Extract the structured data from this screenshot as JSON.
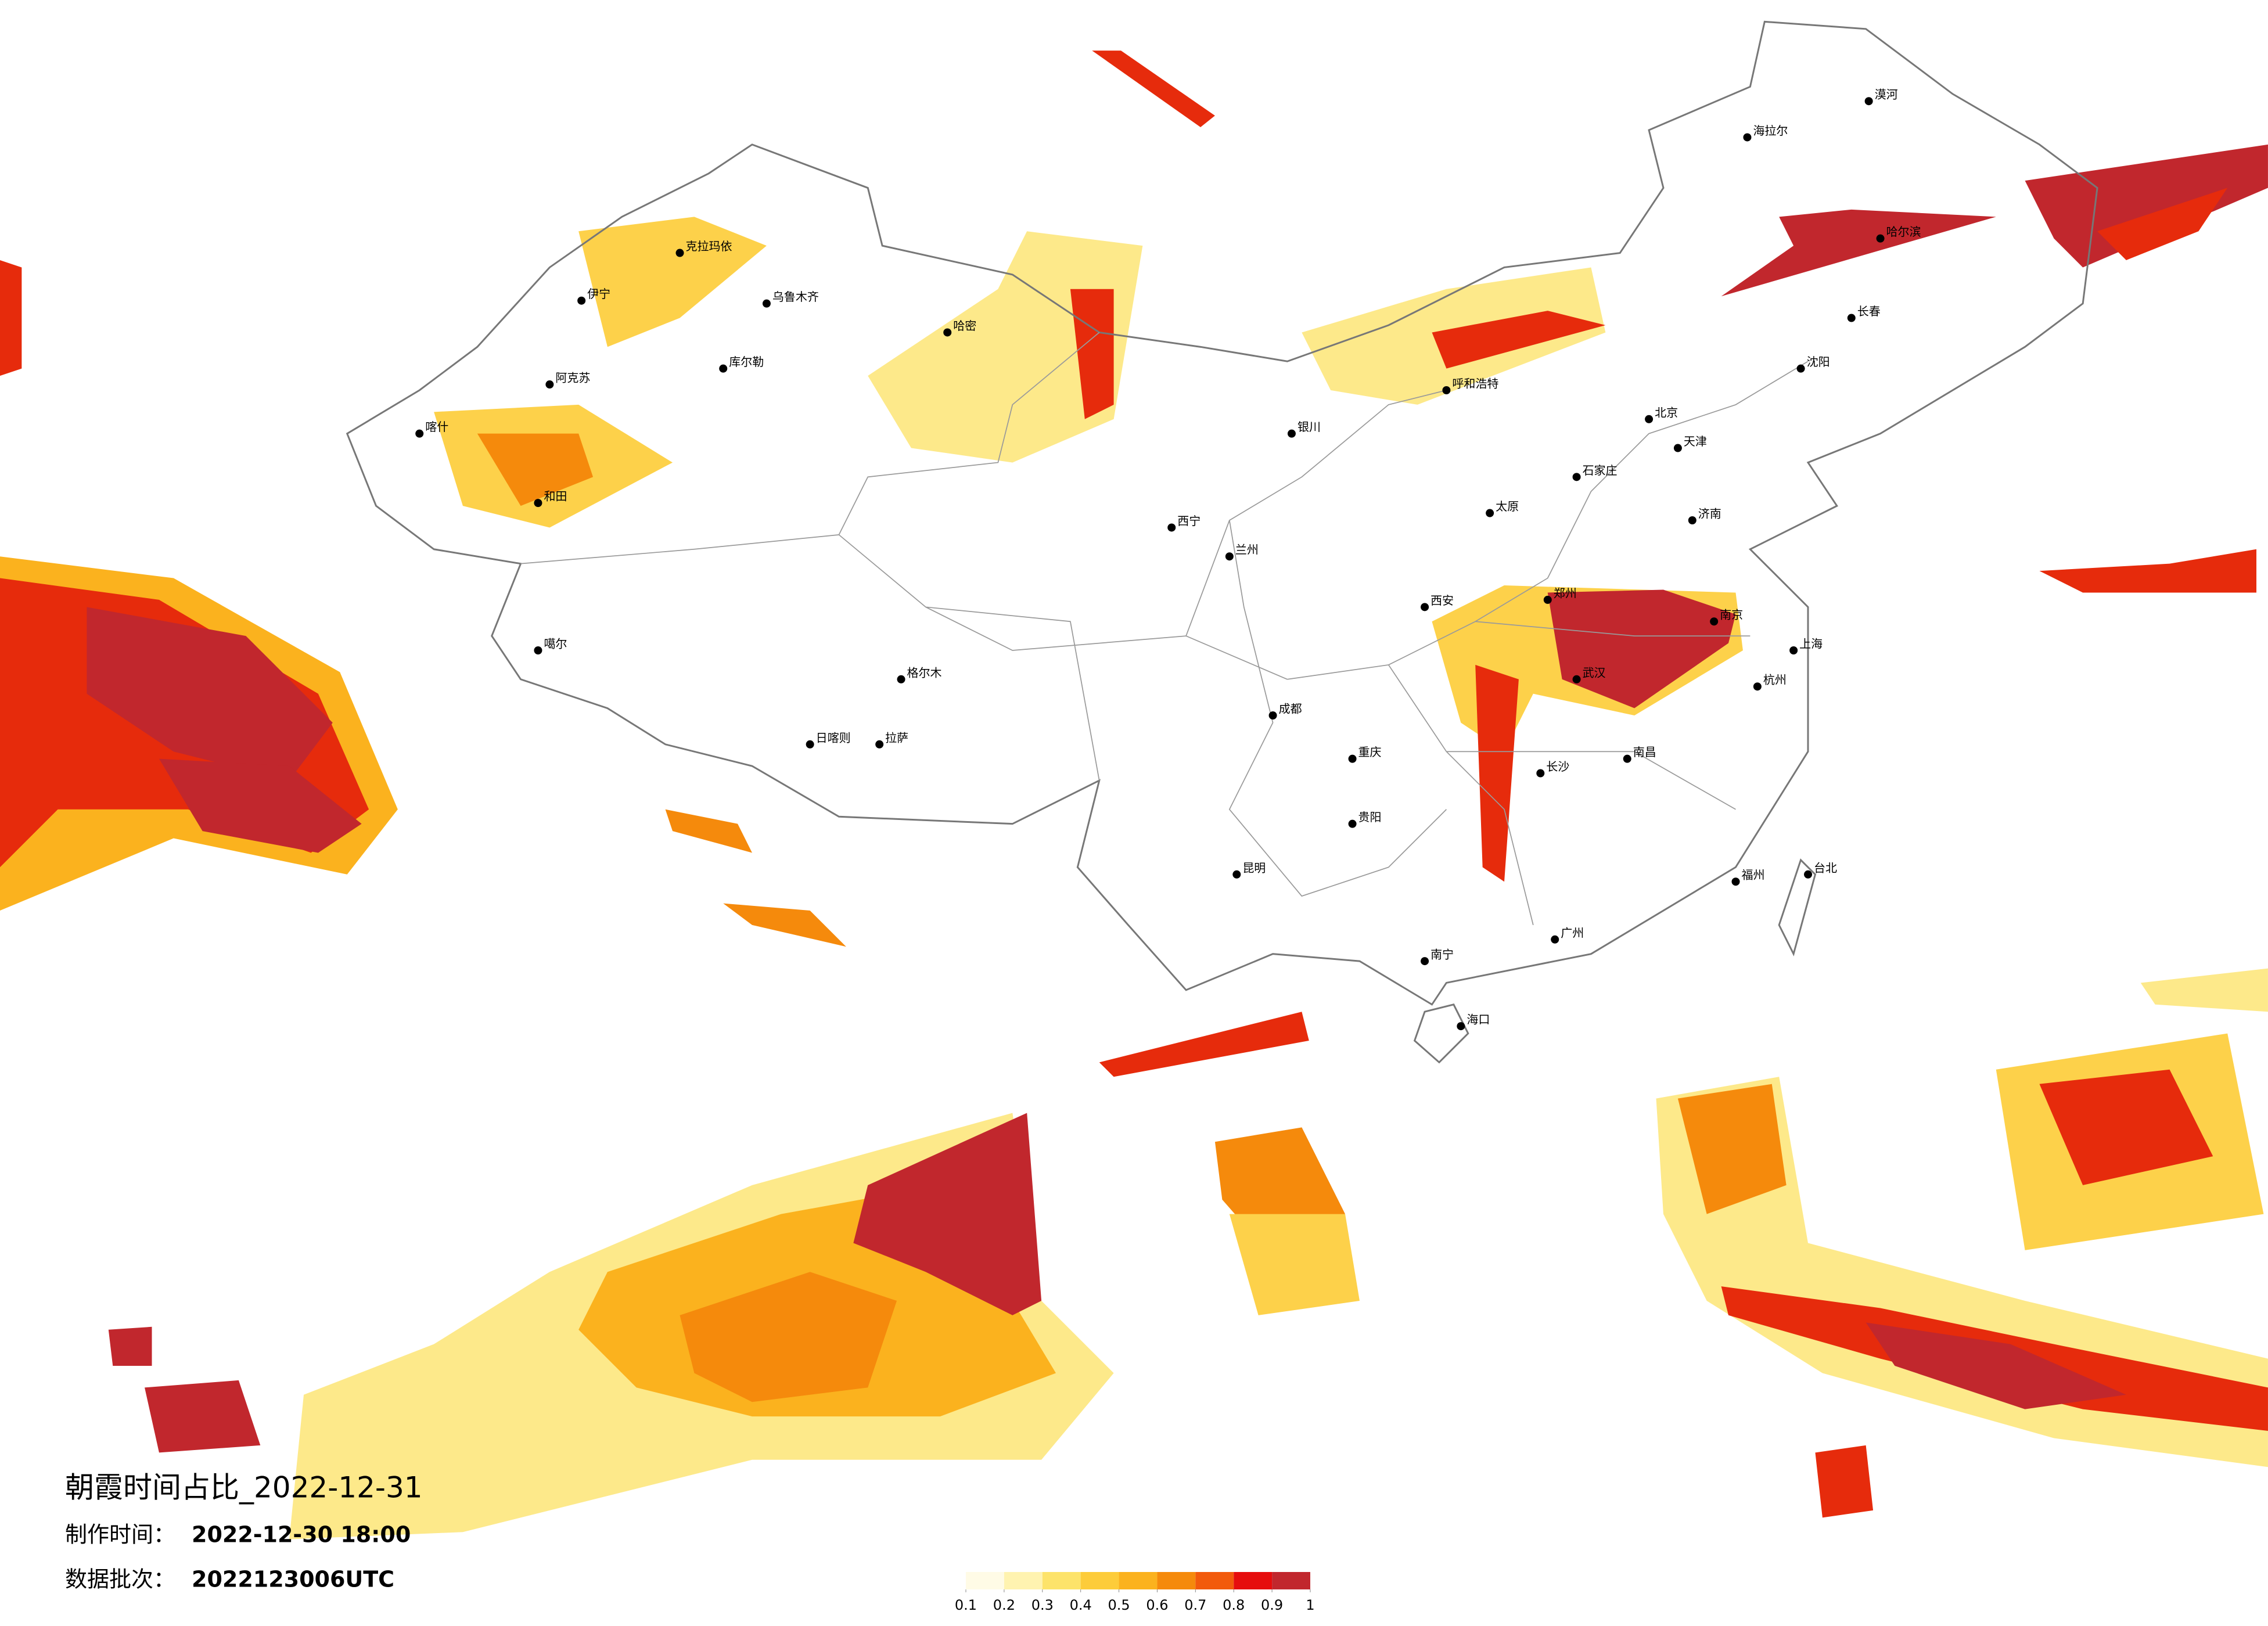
{
  "title": "朝霞时间占比_2022-12-31",
  "production_label": "制作时间：",
  "production_time": "2022-12-30 18:00",
  "batch_label": "数据批次：",
  "batch": "2022123006UTC",
  "legend": {
    "ticks": [
      0.1,
      0.2,
      0.3,
      0.4,
      0.5,
      0.6,
      0.7,
      0.8,
      0.9,
      1
    ],
    "colors": [
      "#fffbe6",
      "#fff3b0",
      "#fde36a",
      "#fdcc3a",
      "#fbb21e",
      "#f58a0c",
      "#f25a0c",
      "#e60d0d",
      "#c1272d"
    ]
  },
  "cities": [
    "乌鲁木齐",
    "克拉玛依",
    "伊宁",
    "阿克苏",
    "喀什",
    "和田",
    "哈密",
    "库尔勒",
    "拉萨",
    "日喀则",
    "噶尔",
    "格尔木",
    "西宁",
    "兰州",
    "银川",
    "呼和浩特",
    "北京",
    "天津",
    "石家庄",
    "太原",
    "济南",
    "郑州",
    "西安",
    "成都",
    "重庆",
    "武汉",
    "南京",
    "上海",
    "杭州",
    "长沙",
    "南昌",
    "福州",
    "台北",
    "广州",
    "南宁",
    "海口",
    "昆明",
    "贵阳",
    "沈阳",
    "长春",
    "哈尔滨",
    "漠河",
    "海拉尔"
  ]
}
